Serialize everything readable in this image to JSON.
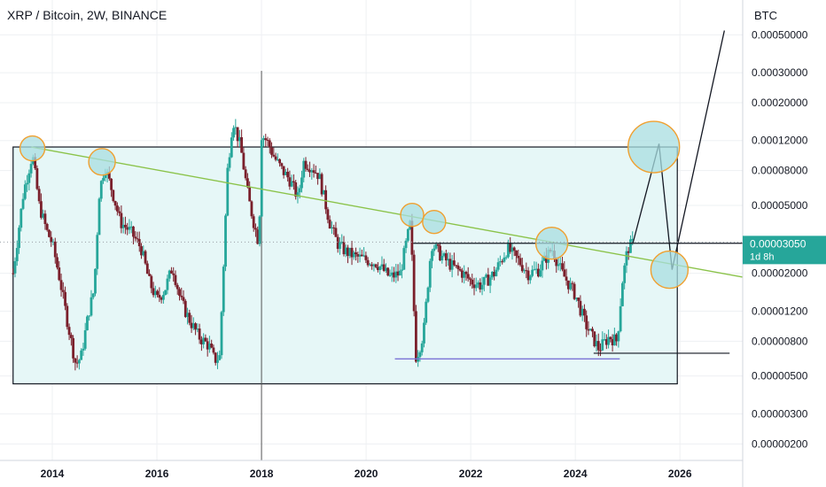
{
  "header": {
    "title": "XRP / Bitcoin, 2W, BINANCE",
    "currency": "BTC"
  },
  "price_tag": {
    "price": "0.00003050",
    "countdown": "1d 8h"
  },
  "colors": {
    "bull": "#26a69a",
    "bear": "#7a1f2b",
    "channel_fill": "#e6f7f7",
    "trend": "#8bc34a",
    "circle_fill": "#a8dde0",
    "circle_stroke": "#f0a030",
    "support": "#7b73d6",
    "price_tag": "#26a69a"
  },
  "chart_data": {
    "type": "candlestick",
    "y_scale": "log",
    "ylim": [
      1.6e-06,
      0.0008
    ],
    "xlim": [
      2013.0,
      2027.2
    ],
    "y_ticks": [
      {
        "value": 0.0005,
        "label": "0.00050000"
      },
      {
        "value": 0.0003,
        "label": "0.00030000"
      },
      {
        "value": 0.0002,
        "label": "0.00020000"
      },
      {
        "value": 0.00012,
        "label": "0.00012000"
      },
      {
        "value": 8e-05,
        "label": "0.00008000"
      },
      {
        "value": 5e-05,
        "label": "0.00005000"
      },
      {
        "value": 2e-05,
        "label": "0.00002000"
      },
      {
        "value": 1.2e-05,
        "label": "0.00001200"
      },
      {
        "value": 8e-06,
        "label": "0.00000800"
      },
      {
        "value": 5e-06,
        "label": "0.00000500"
      },
      {
        "value": 3e-06,
        "label": "0.00000300"
      },
      {
        "value": 2e-06,
        "label": "0.00000200"
      }
    ],
    "x_ticks": [
      {
        "value": 2014,
        "label": "2014"
      },
      {
        "value": 2016,
        "label": "2016"
      },
      {
        "value": 2018,
        "label": "2018"
      },
      {
        "value": 2020,
        "label": "2020"
      },
      {
        "value": 2022,
        "label": "2022"
      },
      {
        "value": 2024,
        "label": "2024"
      },
      {
        "value": 2026,
        "label": "2026"
      }
    ],
    "price_path": [
      [
        2013.25,
        2e-05
      ],
      [
        2013.45,
        6e-05
      ],
      [
        2013.62,
        0.0001
      ],
      [
        2013.75,
        5e-05
      ],
      [
        2013.9,
        3.5e-05
      ],
      [
        2014.0,
        3e-05
      ],
      [
        2014.15,
        1.8e-05
      ],
      [
        2014.3,
        1e-05
      ],
      [
        2014.45,
        5.8e-06
      ],
      [
        2014.55,
        6.5e-06
      ],
      [
        2014.7,
        1.2e-05
      ],
      [
        2014.8,
        1.6e-05
      ],
      [
        2014.9,
        6e-05
      ],
      [
        2015.0,
        8.5e-05
      ],
      [
        2015.15,
        6e-05
      ],
      [
        2015.3,
        4e-05
      ],
      [
        2015.5,
        3.5e-05
      ],
      [
        2015.7,
        2.8e-05
      ],
      [
        2015.85,
        1.8e-05
      ],
      [
        2016.0,
        1.4e-05
      ],
      [
        2016.15,
        1.6e-05
      ],
      [
        2016.3,
        2.2e-05
      ],
      [
        2016.45,
        1.4e-05
      ],
      [
        2016.6,
        1.1e-05
      ],
      [
        2016.8,
        8.5e-06
      ],
      [
        2017.0,
        7.5e-06
      ],
      [
        2017.1,
        6.2e-06
      ],
      [
        2017.2,
        6.5e-06
      ],
      [
        2017.35,
        8e-05
      ],
      [
        2017.45,
        0.00016
      ],
      [
        2017.6,
        0.00011
      ],
      [
        2017.75,
        5.5e-05
      ],
      [
        2017.85,
        4e-05
      ],
      [
        2017.95,
        3e-05
      ],
      [
        2018.0,
        0.00013
      ],
      [
        2018.1,
        0.00012
      ],
      [
        2018.25,
        9.5e-05
      ],
      [
        2018.4,
        8e-05
      ],
      [
        2018.55,
        7e-05
      ],
      [
        2018.7,
        5.5e-05
      ],
      [
        2018.8,
        9e-05
      ],
      [
        2018.95,
        8.5e-05
      ],
      [
        2019.1,
        7.5e-05
      ],
      [
        2019.3,
        4e-05
      ],
      [
        2019.45,
        3e-05
      ],
      [
        2019.6,
        2.7e-05
      ],
      [
        2019.8,
        2.5e-05
      ],
      [
        2020.0,
        2.4e-05
      ],
      [
        2020.2,
        2.3e-05
      ],
      [
        2020.45,
        1.9e-05
      ],
      [
        2020.65,
        2e-05
      ],
      [
        2020.85,
        4e-05
      ],
      [
        2020.95,
        6.5e-06
      ],
      [
        2021.0,
        7e-06
      ],
      [
        2021.1,
        9e-06
      ],
      [
        2021.25,
        3e-05
      ],
      [
        2021.45,
        2.5e-05
      ],
      [
        2021.65,
        2.2e-05
      ],
      [
        2021.85,
        2e-05
      ],
      [
        2022.0,
        1.8e-05
      ],
      [
        2022.2,
        1.7e-05
      ],
      [
        2022.45,
        2e-05
      ],
      [
        2022.7,
        2.8e-05
      ],
      [
        2022.9,
        2.4e-05
      ],
      [
        2023.1,
        2e-05
      ],
      [
        2023.3,
        2.1e-05
      ],
      [
        2023.55,
        2.8e-05
      ],
      [
        2023.75,
        2e-05
      ],
      [
        2024.0,
        1.5e-05
      ],
      [
        2024.2,
        1e-05
      ],
      [
        2024.45,
        7.2e-06
      ],
      [
        2024.65,
        8.5e-06
      ],
      [
        2024.8,
        8e-06
      ],
      [
        2024.9,
        1.8e-05
      ],
      [
        2025.0,
        2.8e-05
      ],
      [
        2025.1,
        3e-05
      ]
    ],
    "channel": {
      "x0": 2013.25,
      "x1": 2025.95,
      "top": 0.00011,
      "bottom": 4.5e-06
    },
    "trendline": {
      "x0": 2013.6,
      "y0": 0.00011,
      "x1": 2027.2,
      "y1": 1.9e-05
    },
    "resistance": {
      "x0": 2020.9,
      "x1": 2027.2,
      "y": 3e-05
    },
    "support_purple": {
      "x0": 2020.55,
      "x1": 2024.85,
      "y": 6.3e-06
    },
    "support_black": {
      "x0": 2024.35,
      "x1": 2026.95,
      "y": 6.8e-06
    },
    "marker_circles": [
      {
        "x": 2013.62,
        "y": 0.000108,
        "r": 14
      },
      {
        "x": 2014.95,
        "y": 9e-05,
        "r": 15
      },
      {
        "x": 2020.88,
        "y": 4.4e-05,
        "r": 13
      },
      {
        "x": 2021.3,
        "y": 4e-05,
        "r": 13
      },
      {
        "x": 2023.55,
        "y": 3e-05,
        "r": 18
      },
      {
        "x": 2025.5,
        "y": 0.00011,
        "r": 29
      },
      {
        "x": 2025.8,
        "y": 2.1e-05,
        "r": 21
      }
    ],
    "projection": [
      [
        2025.1,
        3e-05
      ],
      [
        2025.6,
        0.000115
      ],
      [
        2025.85,
        2.1e-05
      ],
      [
        2026.85,
        0.00053
      ]
    ],
    "current_price": 3.05e-05,
    "event_line_x": 2018.0
  }
}
